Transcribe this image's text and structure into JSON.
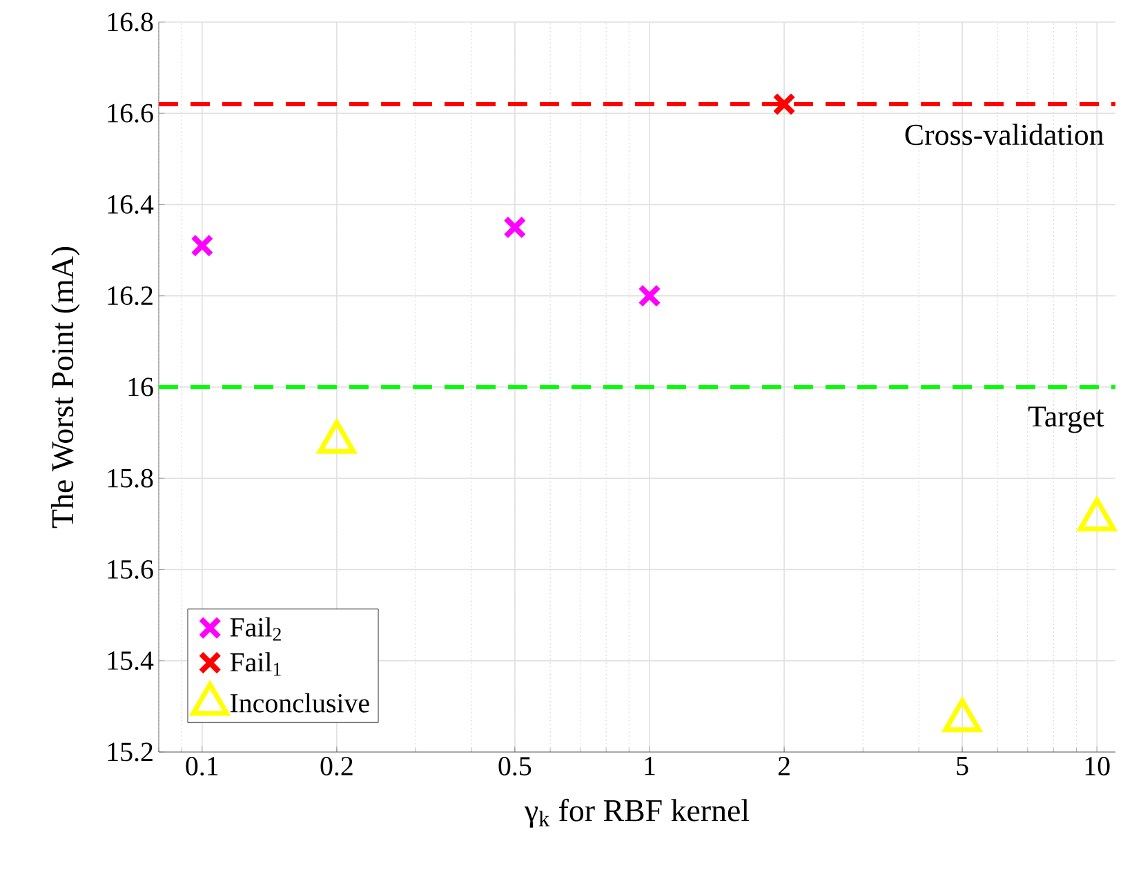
{
  "chart_data": {
    "type": "scatter",
    "xlabel": "γ$_{k}$ for RBF kernel",
    "ylabel": "The Worst Point (mA)",
    "log": "x",
    "grid": true,
    "legend": "bottom left",
    "xlim": [
      0.08,
      11
    ],
    "xticks": [
      0.1,
      0.2,
      0.5,
      1,
      2,
      5,
      10
    ],
    "ylim": [
      15.2,
      16.8
    ],
    "yticks": [
      15.2,
      15.4,
      15.6,
      15.8,
      16,
      16.2,
      16.4,
      16.6,
      16.8
    ],
    "series": [
      {
        "name": "Fail$_{2}$",
        "color": "#ff00ff",
        "marker": "cross",
        "x": [
          0.1,
          0.5,
          1
        ],
        "values": [
          16.31,
          16.35,
          16.2
        ]
      },
      {
        "name": "Fail$_{1}$",
        "color": "#ff0000",
        "marker": "cross",
        "x": [
          2
        ],
        "values": [
          16.62
        ]
      },
      {
        "name": "Inconclusive",
        "color": "#ffff00",
        "marker": "triangle",
        "x": [
          0.2,
          5,
          10
        ],
        "values": [
          15.88,
          15.27,
          15.71
        ]
      }
    ],
    "ref_lines": [
      {
        "axis": "y",
        "value": 16.62,
        "label": "Cross-validation",
        "color": "#ff0000",
        "line_style": "dashed"
      },
      {
        "axis": "y",
        "value": 16,
        "label": "Target",
        "color": "#00ff00",
        "line_style": "dashed"
      }
    ]
  }
}
